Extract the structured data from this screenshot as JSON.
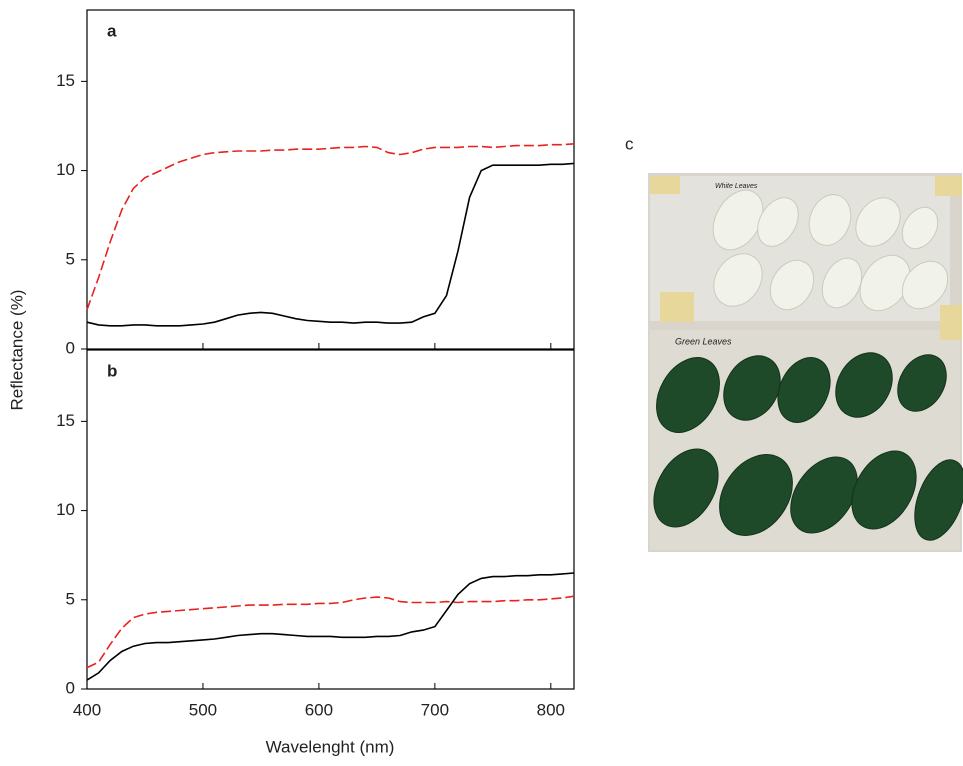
{
  "chart_data": [
    {
      "type": "line",
      "title": "a",
      "ylabel": "Reflectance (%)",
      "x": [
        400,
        410,
        420,
        430,
        440,
        450,
        460,
        470,
        480,
        490,
        500,
        510,
        520,
        530,
        540,
        550,
        560,
        570,
        580,
        590,
        600,
        610,
        620,
        630,
        640,
        650,
        660,
        670,
        680,
        690,
        700,
        710,
        720,
        730,
        740,
        750,
        760,
        770,
        780,
        790,
        800,
        810,
        820
      ],
      "xlim": [
        400,
        820
      ],
      "xticks": [
        400,
        500,
        600,
        700,
        800
      ],
      "ylim": [
        0,
        19
      ],
      "yticks": [
        0,
        5,
        10,
        15
      ],
      "series": [
        {
          "color": "#e8231f",
          "dashed": true,
          "values": [
            2.2,
            4,
            6,
            7.8,
            9,
            9.6,
            9.9,
            10.2,
            10.5,
            10.7,
            10.9,
            11,
            11.05,
            11.1,
            11.1,
            11.1,
            11.15,
            11.15,
            11.2,
            11.2,
            11.2,
            11.25,
            11.3,
            11.3,
            11.35,
            11.3,
            11,
            10.9,
            11,
            11.2,
            11.3,
            11.3,
            11.3,
            11.35,
            11.35,
            11.3,
            11.35,
            11.4,
            11.4,
            11.4,
            11.45,
            11.45,
            11.5
          ]
        },
        {
          "color": "#000000",
          "dashed": false,
          "values": [
            1.5,
            1.35,
            1.3,
            1.3,
            1.35,
            1.35,
            1.3,
            1.3,
            1.3,
            1.35,
            1.4,
            1.5,
            1.7,
            1.9,
            2,
            2.05,
            2,
            1.85,
            1.7,
            1.6,
            1.55,
            1.5,
            1.5,
            1.45,
            1.5,
            1.5,
            1.45,
            1.45,
            1.5,
            1.8,
            2,
            3,
            5.5,
            8.5,
            10,
            10.3,
            10.3,
            10.3,
            10.3,
            10.3,
            10.35,
            10.35,
            10.4
          ]
        }
      ]
    },
    {
      "type": "line",
      "title": "b",
      "xlabel": "Wavelenght (nm)",
      "x": [
        400,
        410,
        420,
        430,
        440,
        450,
        460,
        470,
        480,
        490,
        500,
        510,
        520,
        530,
        540,
        550,
        560,
        570,
        580,
        590,
        600,
        610,
        620,
        630,
        640,
        650,
        660,
        670,
        680,
        690,
        700,
        710,
        720,
        730,
        740,
        750,
        760,
        770,
        780,
        790,
        800,
        810,
        820
      ],
      "xlim": [
        400,
        820
      ],
      "xticks": [
        400,
        500,
        600,
        700,
        800
      ],
      "ylim": [
        0,
        19
      ],
      "yticks": [
        0,
        5,
        10,
        15
      ],
      "series": [
        {
          "color": "#e8231f",
          "dashed": true,
          "values": [
            1.2,
            1.5,
            2.5,
            3.4,
            4,
            4.2,
            4.3,
            4.35,
            4.4,
            4.45,
            4.5,
            4.55,
            4.6,
            4.65,
            4.7,
            4.7,
            4.7,
            4.75,
            4.75,
            4.75,
            4.8,
            4.8,
            4.85,
            5,
            5.1,
            5.15,
            5.1,
            4.9,
            4.85,
            4.85,
            4.85,
            4.9,
            4.85,
            4.9,
            4.9,
            4.9,
            4.95,
            4.95,
            5,
            5,
            5.05,
            5.1,
            5.2
          ]
        },
        {
          "color": "#000000",
          "dashed": false,
          "values": [
            0.5,
            0.9,
            1.6,
            2.1,
            2.4,
            2.55,
            2.6,
            2.6,
            2.65,
            2.7,
            2.75,
            2.8,
            2.9,
            3,
            3.05,
            3.1,
            3.1,
            3.05,
            3,
            2.95,
            2.95,
            2.95,
            2.9,
            2.9,
            2.9,
            2.95,
            2.95,
            3,
            3.2,
            3.3,
            3.5,
            4.4,
            5.3,
            5.9,
            6.2,
            6.3,
            6.3,
            6.35,
            6.35,
            6.4,
            6.4,
            6.45,
            6.5
          ]
        }
      ]
    }
  ],
  "photo": {
    "label": "c",
    "notes": [
      "White Leaves",
      "Green Leaves"
    ]
  }
}
